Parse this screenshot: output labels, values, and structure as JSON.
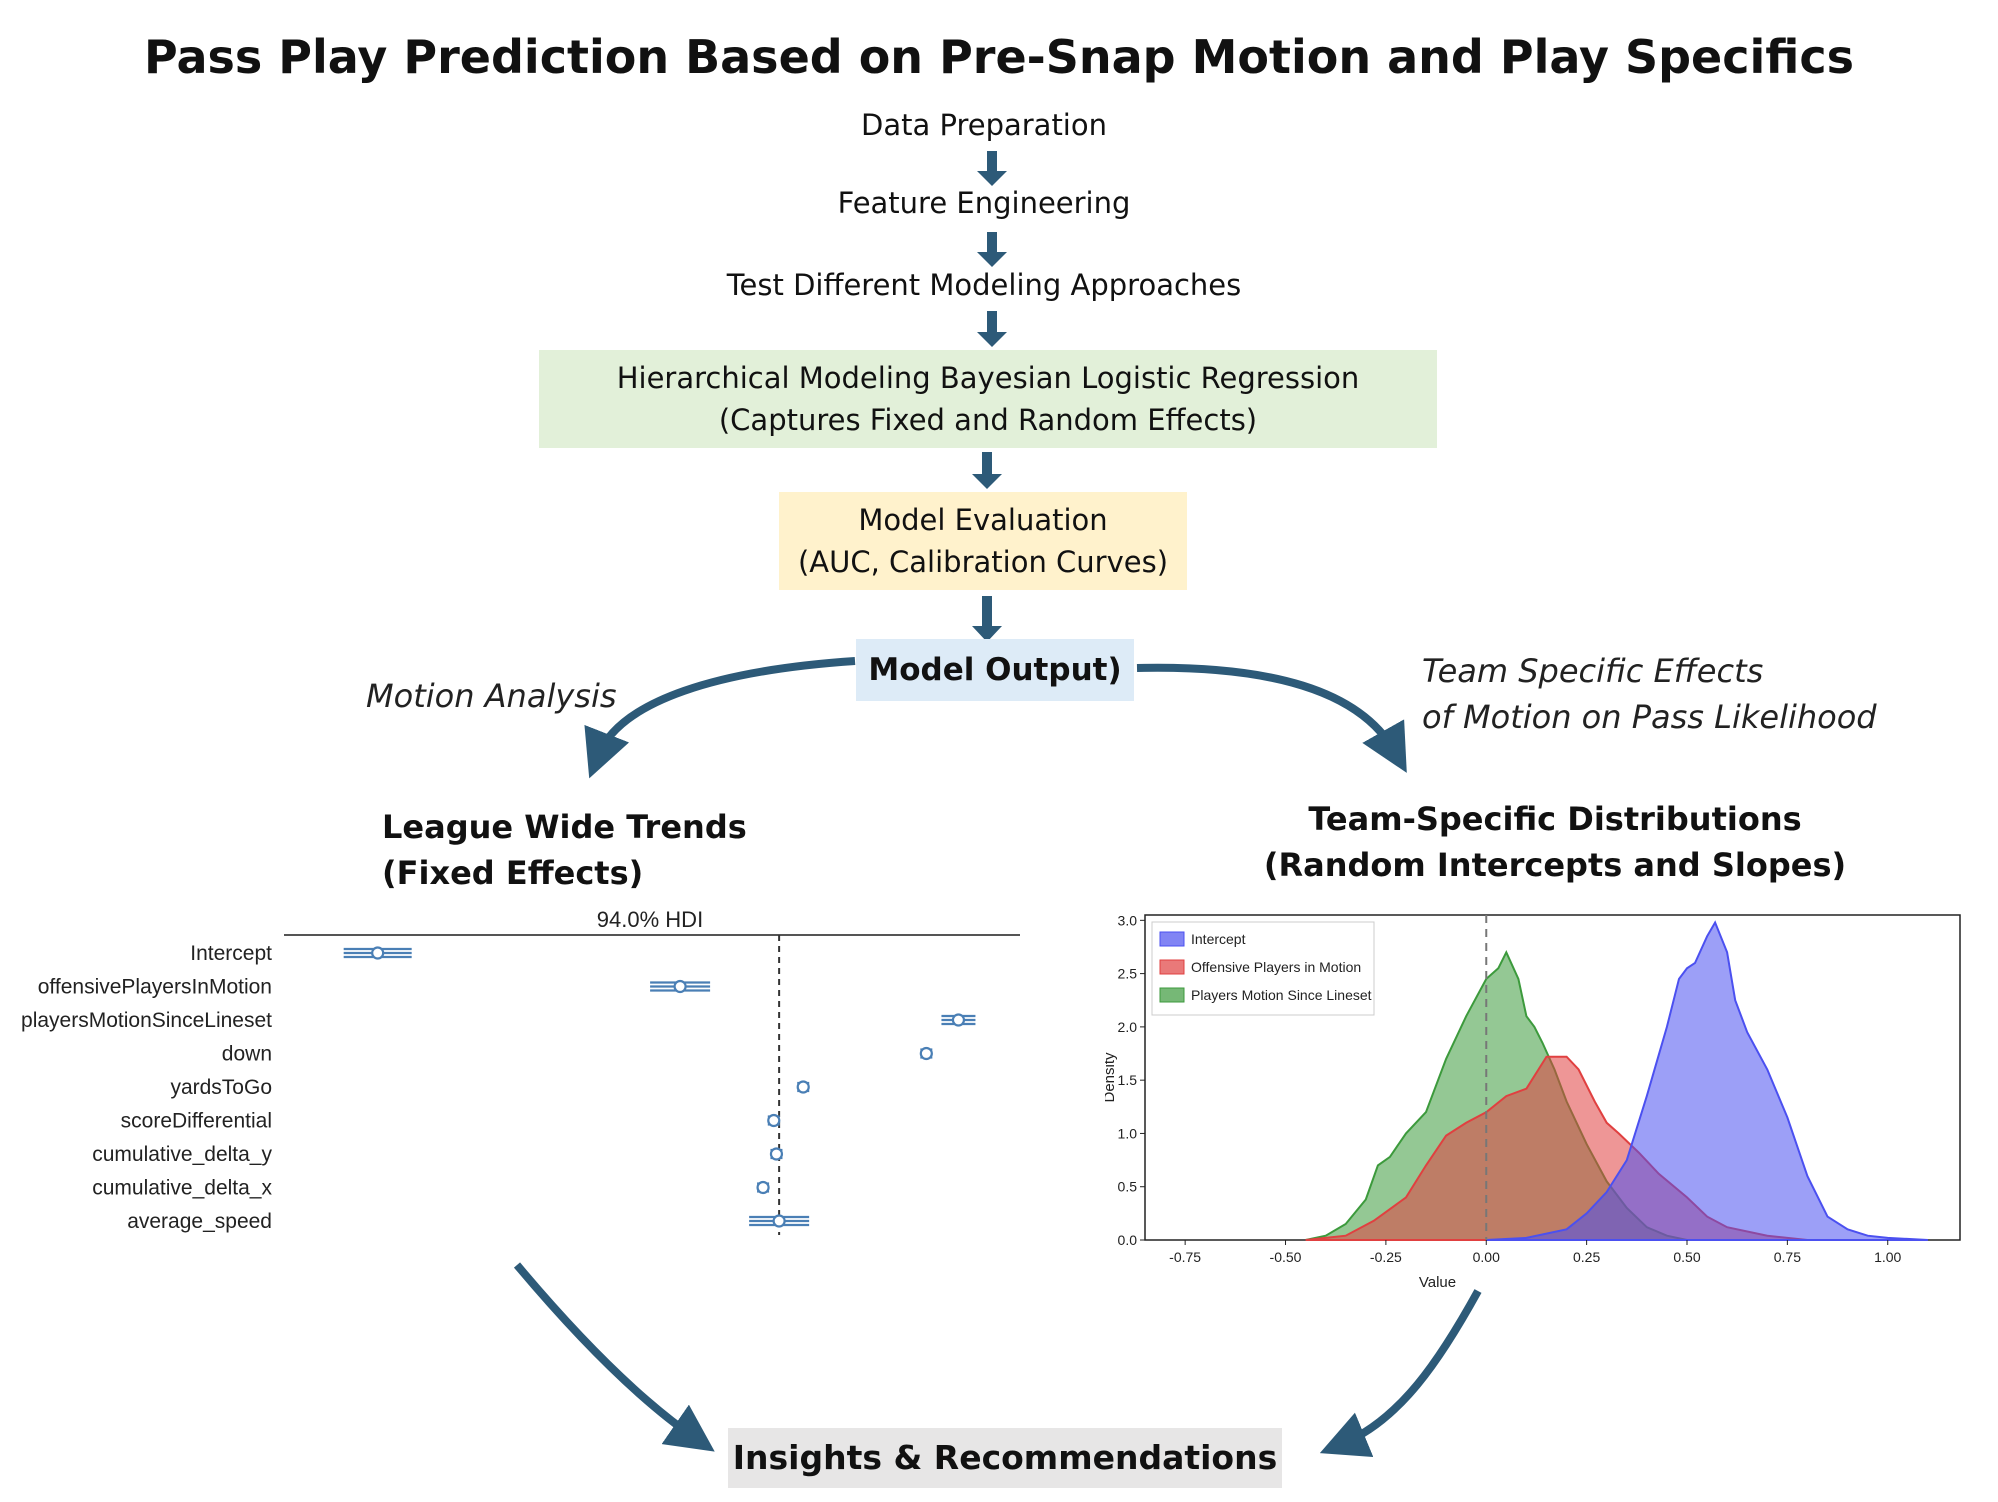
{
  "title": "Pass Play Prediction Based on Pre-Snap Motion and Play Specifics",
  "flow": {
    "step1": "Data Preparation",
    "step2": "Feature Engineering",
    "step3": "Test Different Modeling Approaches",
    "step4_line1": "Hierarchical Modeling Bayesian Logistic Regression",
    "step4_line2": "(Captures Fixed and Random Effects)",
    "step5_line1": "Model Evaluation",
    "step5_line2": "(AUC, Calibration Curves)",
    "output": "Model Output)",
    "left_branch": "Motion Analysis",
    "right_branch_line1": "Team Specific Effects",
    "right_branch_line2": "of Motion on Pass Likelihood",
    "final": "Insights & Recommendations"
  },
  "left_section": {
    "title_line1": "League Wide Trends",
    "title_line2": "(Fixed Effects)"
  },
  "right_section": {
    "title_line1": "Team-Specific Distributions",
    "title_line2": "(Random Intercepts and Slopes)"
  },
  "colors": {
    "arrow": "#2d5a78",
    "model_box": "#e2f0d9",
    "eval_box": "#fff2cc",
    "output_box": "#ddebf7",
    "final_box": "#e7e6e6",
    "forest_mark": "#4a7fb5"
  },
  "chart_data": [
    {
      "type": "forest",
      "title": "94.0% HDI",
      "categories": [
        "Intercept",
        "offensivePlayersInMotion",
        "playersMotionSinceLineset",
        "down",
        "yardsToGo",
        "scoreDifferential",
        "cumulative_delta_y",
        "cumulative_delta_x",
        "average_speed"
      ],
      "estimates": [
        -1.5,
        -0.37,
        0.67,
        0.55,
        0.09,
        -0.02,
        -0.01,
        -0.06,
        0.0
      ],
      "reference_line": 0,
      "grid": false
    },
    {
      "type": "area",
      "xlabel": "Value",
      "ylabel": "Density",
      "xlim": [
        -0.85,
        1.18
      ],
      "ylim": [
        0,
        3.05
      ],
      "xticks": [
        "-0.75",
        "-0.50",
        "-0.25",
        "0.00",
        "0.25",
        "0.50",
        "0.75",
        "1.00"
      ],
      "yticks": [
        "0.0",
        "0.5",
        "1.0",
        "1.5",
        "2.0",
        "2.5",
        "3.0"
      ],
      "legend_position": "top-left",
      "reference_line": 0,
      "series": [
        {
          "name": "Intercept",
          "color": "#4b50f0",
          "points": [
            [
              0.0,
              0.0
            ],
            [
              0.1,
              0.02
            ],
            [
              0.2,
              0.1
            ],
            [
              0.25,
              0.25
            ],
            [
              0.3,
              0.45
            ],
            [
              0.35,
              0.75
            ],
            [
              0.4,
              1.35
            ],
            [
              0.45,
              2.0
            ],
            [
              0.48,
              2.45
            ],
            [
              0.5,
              2.55
            ],
            [
              0.52,
              2.6
            ],
            [
              0.55,
              2.85
            ],
            [
              0.57,
              2.98
            ],
            [
              0.6,
              2.7
            ],
            [
              0.62,
              2.25
            ],
            [
              0.65,
              1.95
            ],
            [
              0.7,
              1.6
            ],
            [
              0.75,
              1.15
            ],
            [
              0.8,
              0.6
            ],
            [
              0.85,
              0.22
            ],
            [
              0.9,
              0.1
            ],
            [
              0.95,
              0.04
            ],
            [
              1.0,
              0.02
            ],
            [
              1.1,
              0.0
            ]
          ]
        },
        {
          "name": "Offensive Players in Motion",
          "color": "#e04040",
          "points": [
            [
              -0.45,
              0.0
            ],
            [
              -0.35,
              0.04
            ],
            [
              -0.28,
              0.18
            ],
            [
              -0.2,
              0.4
            ],
            [
              -0.15,
              0.7
            ],
            [
              -0.1,
              0.98
            ],
            [
              -0.05,
              1.1
            ],
            [
              0.0,
              1.2
            ],
            [
              0.05,
              1.35
            ],
            [
              0.1,
              1.42
            ],
            [
              0.15,
              1.72
            ],
            [
              0.2,
              1.72
            ],
            [
              0.23,
              1.6
            ],
            [
              0.27,
              1.3
            ],
            [
              0.3,
              1.1
            ],
            [
              0.33,
              1.0
            ],
            [
              0.38,
              0.82
            ],
            [
              0.43,
              0.62
            ],
            [
              0.5,
              0.4
            ],
            [
              0.55,
              0.22
            ],
            [
              0.6,
              0.12
            ],
            [
              0.7,
              0.04
            ],
            [
              0.8,
              0.0
            ]
          ]
        },
        {
          "name": "Players Motion Since Lineset",
          "color": "#3c9a3c",
          "points": [
            [
              -0.45,
              0.0
            ],
            [
              -0.4,
              0.04
            ],
            [
              -0.35,
              0.15
            ],
            [
              -0.3,
              0.38
            ],
            [
              -0.27,
              0.7
            ],
            [
              -0.24,
              0.78
            ],
            [
              -0.2,
              1.0
            ],
            [
              -0.15,
              1.2
            ],
            [
              -0.1,
              1.7
            ],
            [
              -0.05,
              2.1
            ],
            [
              0.0,
              2.45
            ],
            [
              0.03,
              2.55
            ],
            [
              0.05,
              2.7
            ],
            [
              0.08,
              2.45
            ],
            [
              0.1,
              2.1
            ],
            [
              0.12,
              2.0
            ],
            [
              0.14,
              1.85
            ],
            [
              0.17,
              1.6
            ],
            [
              0.2,
              1.3
            ],
            [
              0.25,
              0.9
            ],
            [
              0.3,
              0.55
            ],
            [
              0.35,
              0.3
            ],
            [
              0.4,
              0.12
            ],
            [
              0.45,
              0.04
            ],
            [
              0.5,
              0.0
            ]
          ]
        }
      ]
    }
  ]
}
